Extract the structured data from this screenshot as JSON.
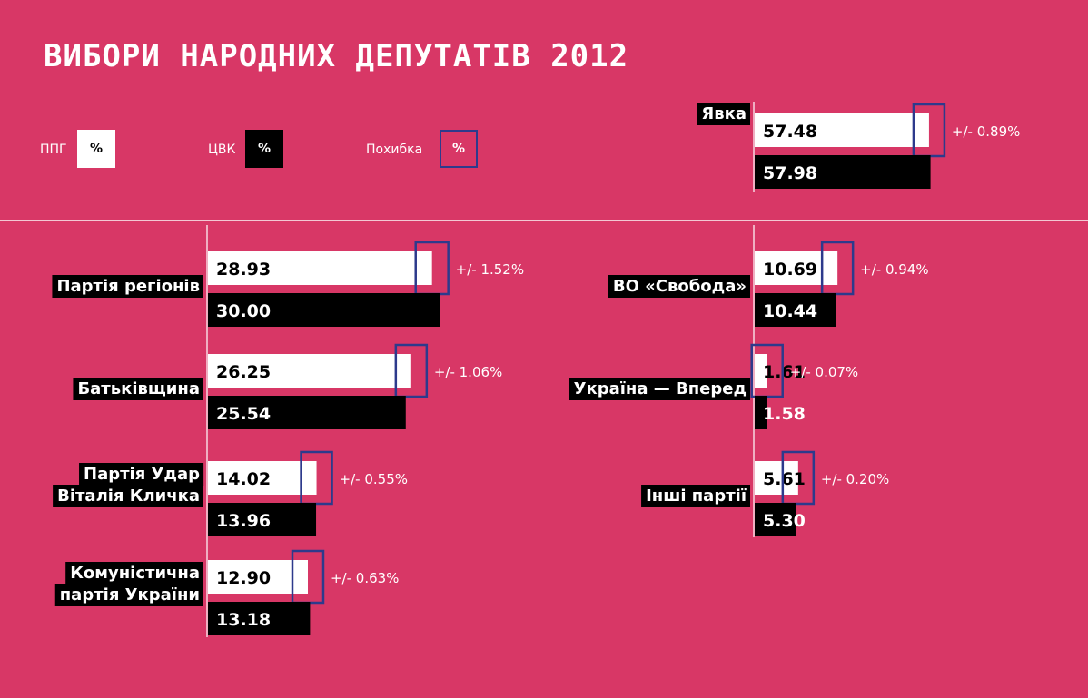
{
  "title": "ВИБОРИ НАРОДНИХ ДЕПУТАТІВ 2012",
  "legend": [
    {
      "label": "ППГ",
      "chip": "%",
      "style": "white"
    },
    {
      "label": "ЦВК",
      "chip": "%",
      "style": "black"
    },
    {
      "label": "Похибка",
      "chip": "%",
      "style": "outline"
    }
  ],
  "colors": {
    "background": "#d83766",
    "ppg_bar": "#ffffff",
    "cvk_bar": "#000000",
    "error_box": "#2d3a8c"
  },
  "chart_data": {
    "type": "bar",
    "orientation": "horizontal",
    "series": [
      {
        "name": "ППГ",
        "color": "#ffffff"
      },
      {
        "name": "ЦВК",
        "color": "#000000"
      }
    ],
    "groups": [
      {
        "name": "Явка",
        "ppg": 57.48,
        "ppg_label": "57.48",
        "cvk": 57.98,
        "cvk_label": "57.98",
        "error": 0.89,
        "error_label": "+/- 0.89%"
      },
      {
        "name": "Партія регіонів",
        "ppg": 28.93,
        "ppg_label": "28.93",
        "cvk": 30.0,
        "cvk_label": "30.00",
        "error": 1.52,
        "error_label": "+/- 1.52%"
      },
      {
        "name": "Батьківщина",
        "ppg": 26.25,
        "ppg_label": "26.25",
        "cvk": 25.54,
        "cvk_label": "25.54",
        "error": 1.06,
        "error_label": "+/- 1.06%"
      },
      {
        "name": "Партія Удар\nВіталія Кличка",
        "ppg": 14.02,
        "ppg_label": "14.02",
        "cvk": 13.96,
        "cvk_label": "13.96",
        "error": 0.55,
        "error_label": "+/- 0.55%"
      },
      {
        "name": "Комуністична\nпартія України",
        "ppg": 12.9,
        "ppg_label": "12.90",
        "cvk": 13.18,
        "cvk_label": "13.18",
        "error": 0.63,
        "error_label": "+/- 0.63%"
      },
      {
        "name": "ВО «Свобода»",
        "ppg": 10.69,
        "ppg_label": "10.69",
        "cvk": 10.44,
        "cvk_label": "10.44",
        "error": 0.94,
        "error_label": "+/- 0.94%"
      },
      {
        "name": "Україна — Вперед",
        "ppg": 1.61,
        "ppg_label": "1.61",
        "cvk": 1.58,
        "cvk_label": "1.58",
        "error": 0.07,
        "error_label": "+/- 0.07%"
      },
      {
        "name": "Інші партії",
        "ppg": 5.61,
        "ppg_label": "5.61",
        "cvk": 5.3,
        "cvk_label": "5.30",
        "error": 0.2,
        "error_label": "+/- 0.20%"
      }
    ]
  }
}
